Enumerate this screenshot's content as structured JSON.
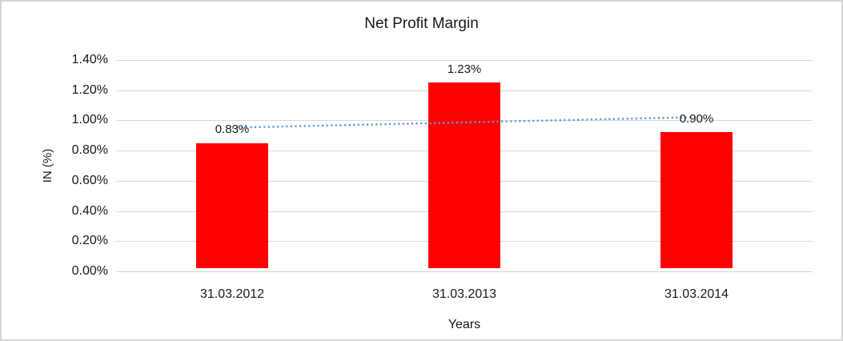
{
  "chart": {
    "title": "Net Profit Margin",
    "y_axis_title": "IN (%)",
    "x_axis_title": "Years",
    "y_ticks": [
      "1.40%",
      "1.20%",
      "1.00%",
      "0.80%",
      "0.60%",
      "0.40%",
      "0.20%",
      "0.00%"
    ],
    "categories": [
      "31.03.2012",
      "31.03.2013",
      "31.03.2014"
    ],
    "data_labels": [
      "0.83%",
      "1.23%",
      "0.90%"
    ],
    "bar_color": "#FF0000",
    "trendline_color": "#5B9BD5",
    "gridline_color": "#D9D9D9"
  },
  "chart_data": {
    "type": "bar",
    "title": "Net Profit Margin",
    "xlabel": "Years",
    "ylabel": "IN (%)",
    "categories": [
      "31.03.2012",
      "31.03.2013",
      "31.03.2014"
    ],
    "values": [
      0.83,
      1.23,
      0.9
    ],
    "data_labels": [
      "0.83%",
      "1.23%",
      "0.90%"
    ],
    "ylim": [
      0,
      1.4
    ],
    "y_tick_step": 0.2,
    "y_tick_format": "0.00%",
    "grid": true,
    "legend": false,
    "series_color": "#FF0000",
    "trendline": {
      "type": "linear",
      "style": "dotted",
      "color": "#5B9BD5",
      "endpoints_pct": [
        0.9517,
        1.0217
      ]
    }
  }
}
